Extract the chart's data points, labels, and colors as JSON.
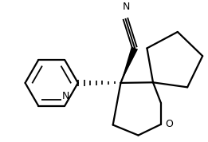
{
  "background": "#ffffff",
  "lw": 1.6,
  "lc": "#000000",
  "N_label": "N",
  "O_label": "O",
  "label_fontsize": 9,
  "figsize": [
    2.61,
    1.78
  ],
  "dpi": 100,
  "xlim": [
    0,
    261
  ],
  "ylim": [
    0,
    178
  ]
}
